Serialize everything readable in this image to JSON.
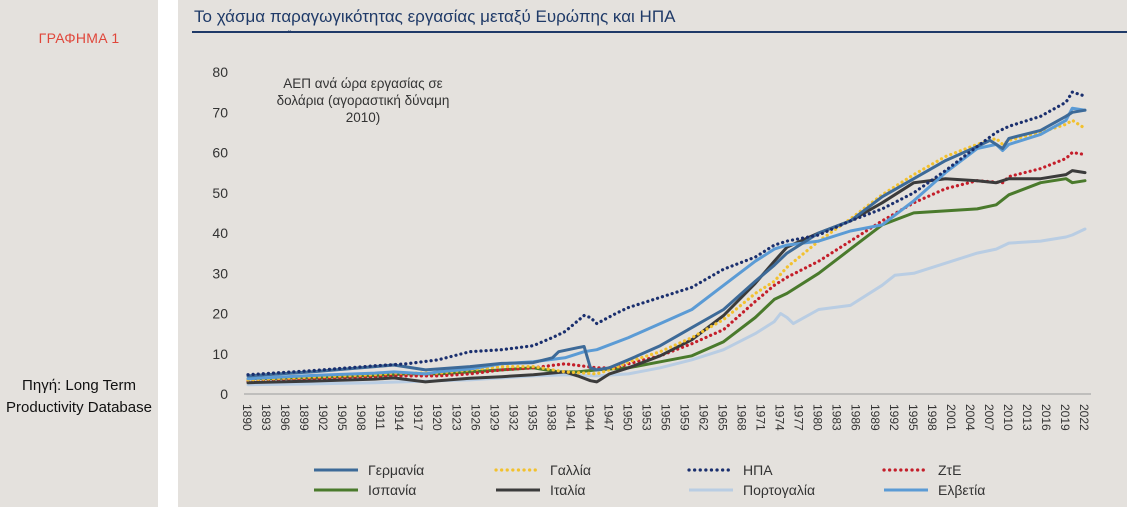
{
  "sidebar": {
    "chart_label": "ΓΡΑΦΗΜΑ 1",
    "source": "Πηγή: Long Term Productivity Database"
  },
  "header": {
    "title": "Το χάσμα παραγωγικότητας εργασίας μεταξύ Ευρώπης και ΗΠΑ"
  },
  "chart_data": {
    "type": "line",
    "title": "Το χάσμα παραγωγικότητας εργασίας μεταξύ Ευρώπης και ΗΠΑ",
    "ylabel_lines": [
      "ΑΕΠ ανά ώρα εργασίας σε",
      "δολάρια (αγοραστική δύναμη",
      "2010)"
    ],
    "xlabel": "",
    "ylim": [
      0,
      80
    ],
    "yticks": [
      0,
      10,
      20,
      30,
      40,
      50,
      60,
      70,
      80
    ],
    "xrange": [
      1890,
      2022
    ],
    "xticks": [
      "1890",
      "1893",
      "1896",
      "1899",
      "1902",
      "1905",
      "1908",
      "1911",
      "1914",
      "1917",
      "1920",
      "1923",
      "1926",
      "1929",
      "1932",
      "1935",
      "1938",
      "1941",
      "1944",
      "1947",
      "1950",
      "1953",
      "1956",
      "1959",
      "1962",
      "1965",
      "1968",
      "1971",
      "1974",
      "1977",
      "1980",
      "1983",
      "1986",
      "1989",
      "1992",
      "1995",
      "1998",
      "2001",
      "2004",
      "2007",
      "2010",
      "2013",
      "2016",
      "2019",
      "2022"
    ],
    "grid": false,
    "legend_position": "bottom",
    "series": [
      {
        "name": "Γερμανία",
        "color": "#3d6a98",
        "style": "solid",
        "points": [
          [
            1890,
            4.5
          ],
          [
            1900,
            5.5
          ],
          [
            1910,
            6.8
          ],
          [
            1913,
            7.2
          ],
          [
            1918,
            6.0
          ],
          [
            1925,
            6.8
          ],
          [
            1930,
            7.6
          ],
          [
            1935,
            7.8
          ],
          [
            1938,
            9.0
          ],
          [
            1939,
            10.5
          ],
          [
            1942,
            11.5
          ],
          [
            1943,
            11.8
          ],
          [
            1944,
            6.5
          ],
          [
            1945,
            6.0
          ],
          [
            1947,
            6.5
          ],
          [
            1950,
            8.5
          ],
          [
            1955,
            12.0
          ],
          [
            1960,
            16.5
          ],
          [
            1965,
            21.0
          ],
          [
            1970,
            28.0
          ],
          [
            1973,
            32.0
          ],
          [
            1975,
            35.0
          ],
          [
            1980,
            40.0
          ],
          [
            1985,
            43.0
          ],
          [
            1990,
            49.0
          ],
          [
            1995,
            53.5
          ],
          [
            2000,
            58.0
          ],
          [
            2005,
            61.5
          ],
          [
            2007,
            63.0
          ],
          [
            2009,
            61.0
          ],
          [
            2010,
            63.5
          ],
          [
            2015,
            65.5
          ],
          [
            2019,
            69.0
          ],
          [
            2020,
            70.0
          ],
          [
            2022,
            70.5
          ]
        ]
      },
      {
        "name": "Γαλλία",
        "color": "#f2c12e",
        "style": "dotted",
        "points": [
          [
            1890,
            3.5
          ],
          [
            1900,
            4.2
          ],
          [
            1910,
            4.8
          ],
          [
            1913,
            5.2
          ],
          [
            1920,
            5.2
          ],
          [
            1925,
            6.0
          ],
          [
            1930,
            6.8
          ],
          [
            1935,
            6.8
          ],
          [
            1940,
            5.5
          ],
          [
            1945,
            5.0
          ],
          [
            1948,
            6.5
          ],
          [
            1950,
            8.0
          ],
          [
            1955,
            10.5
          ],
          [
            1960,
            14.0
          ],
          [
            1965,
            18.5
          ],
          [
            1970,
            25.0
          ],
          [
            1973,
            28.0
          ],
          [
            1975,
            31.5
          ],
          [
            1980,
            38.0
          ],
          [
            1985,
            43.5
          ],
          [
            1990,
            49.5
          ],
          [
            1995,
            54.5
          ],
          [
            2000,
            59.0
          ],
          [
            2005,
            62.0
          ],
          [
            2008,
            63.5
          ],
          [
            2009,
            62.0
          ],
          [
            2010,
            63.0
          ],
          [
            2015,
            65.0
          ],
          [
            2019,
            67.0
          ],
          [
            2020,
            68.0
          ],
          [
            2022,
            66.0
          ]
        ]
      },
      {
        "name": "ΗΠΑ",
        "color": "#1a2f6e",
        "style": "dotted",
        "points": [
          [
            1890,
            4.8
          ],
          [
            1900,
            5.8
          ],
          [
            1910,
            7.0
          ],
          [
            1915,
            7.5
          ],
          [
            1920,
            8.5
          ],
          [
            1925,
            10.5
          ],
          [
            1930,
            11.0
          ],
          [
            1935,
            12.0
          ],
          [
            1938,
            14.0
          ],
          [
            1940,
            15.5
          ],
          [
            1943,
            19.5
          ],
          [
            1944,
            19.0
          ],
          [
            1945,
            17.5
          ],
          [
            1948,
            20.0
          ],
          [
            1950,
            21.5
          ],
          [
            1955,
            24.0
          ],
          [
            1960,
            26.5
          ],
          [
            1965,
            31.0
          ],
          [
            1970,
            34.0
          ],
          [
            1973,
            37.0
          ],
          [
            1975,
            38.0
          ],
          [
            1980,
            39.5
          ],
          [
            1985,
            43.0
          ],
          [
            1990,
            46.0
          ],
          [
            1995,
            50.0
          ],
          [
            2000,
            55.5
          ],
          [
            2005,
            61.5
          ],
          [
            2008,
            65.0
          ],
          [
            2010,
            66.5
          ],
          [
            2015,
            69.0
          ],
          [
            2019,
            72.5
          ],
          [
            2020,
            75.0
          ],
          [
            2022,
            74.0
          ]
        ]
      },
      {
        "name": "ΖτΕ",
        "color": "#c41e2a",
        "style": "dotted",
        "points": [
          [
            1890,
            3.2
          ],
          [
            1900,
            3.8
          ],
          [
            1910,
            4.2
          ],
          [
            1913,
            4.5
          ],
          [
            1920,
            4.5
          ],
          [
            1925,
            5.0
          ],
          [
            1930,
            6.0
          ],
          [
            1935,
            6.5
          ],
          [
            1940,
            7.5
          ],
          [
            1945,
            6.5
          ],
          [
            1948,
            6.5
          ],
          [
            1950,
            7.5
          ],
          [
            1955,
            9.5
          ],
          [
            1960,
            12.5
          ],
          [
            1965,
            16.0
          ],
          [
            1970,
            23.0
          ],
          [
            1973,
            27.0
          ],
          [
            1975,
            29.0
          ],
          [
            1980,
            33.0
          ],
          [
            1985,
            38.0
          ],
          [
            1990,
            43.0
          ],
          [
            1995,
            47.5
          ],
          [
            2000,
            51.0
          ],
          [
            2005,
            53.0
          ],
          [
            2009,
            52.5
          ],
          [
            2010,
            54.0
          ],
          [
            2015,
            56.0
          ],
          [
            2019,
            58.5
          ],
          [
            2020,
            60.0
          ],
          [
            2022,
            59.5
          ]
        ]
      },
      {
        "name": "Ισπανία",
        "color": "#4a7a2c",
        "style": "solid",
        "points": [
          [
            1890,
            3.8
          ],
          [
            1900,
            4.0
          ],
          [
            1910,
            4.6
          ],
          [
            1915,
            5.0
          ],
          [
            1920,
            5.0
          ],
          [
            1925,
            5.5
          ],
          [
            1930,
            6.0
          ],
          [
            1935,
            6.5
          ],
          [
            1937,
            6.0
          ],
          [
            1939,
            5.5
          ],
          [
            1942,
            5.5
          ],
          [
            1945,
            6.0
          ],
          [
            1950,
            6.5
          ],
          [
            1955,
            8.0
          ],
          [
            1960,
            9.5
          ],
          [
            1965,
            13.0
          ],
          [
            1970,
            19.0
          ],
          [
            1973,
            23.5
          ],
          [
            1975,
            25.0
          ],
          [
            1980,
            30.0
          ],
          [
            1985,
            36.0
          ],
          [
            1990,
            42.0
          ],
          [
            1995,
            45.0
          ],
          [
            2000,
            45.5
          ],
          [
            2005,
            46.0
          ],
          [
            2008,
            47.0
          ],
          [
            2010,
            49.5
          ],
          [
            2015,
            52.5
          ],
          [
            2019,
            53.5
          ],
          [
            2020,
            52.5
          ],
          [
            2022,
            53.0
          ]
        ]
      },
      {
        "name": "Ιταλία",
        "color": "#3b3b3b",
        "style": "solid",
        "points": [
          [
            1890,
            2.8
          ],
          [
            1900,
            3.2
          ],
          [
            1910,
            3.7
          ],
          [
            1913,
            4.0
          ],
          [
            1918,
            3.0
          ],
          [
            1920,
            3.3
          ],
          [
            1925,
            3.9
          ],
          [
            1930,
            4.3
          ],
          [
            1935,
            4.8
          ],
          [
            1940,
            5.5
          ],
          [
            1942,
            4.5
          ],
          [
            1944,
            3.3
          ],
          [
            1945,
            3.0
          ],
          [
            1947,
            5.0
          ],
          [
            1950,
            6.5
          ],
          [
            1955,
            9.5
          ],
          [
            1960,
            13.5
          ],
          [
            1965,
            19.5
          ],
          [
            1970,
            27.5
          ],
          [
            1973,
            33.0
          ],
          [
            1975,
            36.5
          ],
          [
            1980,
            40.0
          ],
          [
            1985,
            43.0
          ],
          [
            1990,
            47.5
          ],
          [
            1995,
            52.5
          ],
          [
            2000,
            53.5
          ],
          [
            2005,
            53.0
          ],
          [
            2008,
            52.5
          ],
          [
            2010,
            53.5
          ],
          [
            2015,
            53.5
          ],
          [
            2019,
            54.5
          ],
          [
            2020,
            55.5
          ],
          [
            2022,
            55.0
          ]
        ]
      },
      {
        "name": "Πορτογαλία",
        "color": "#b9cde3",
        "style": "solid",
        "points": [
          [
            1890,
            2.3
          ],
          [
            1900,
            2.5
          ],
          [
            1910,
            2.8
          ],
          [
            1920,
            3.3
          ],
          [
            1925,
            3.5
          ],
          [
            1930,
            4.0
          ],
          [
            1935,
            4.5
          ],
          [
            1940,
            4.8
          ],
          [
            1945,
            4.5
          ],
          [
            1950,
            5.0
          ],
          [
            1955,
            6.5
          ],
          [
            1960,
            8.5
          ],
          [
            1965,
            11.0
          ],
          [
            1970,
            15.0
          ],
          [
            1973,
            18.0
          ],
          [
            1974,
            20.0
          ],
          [
            1975,
            19.0
          ],
          [
            1976,
            17.5
          ],
          [
            1980,
            21.0
          ],
          [
            1985,
            22.0
          ],
          [
            1990,
            27.0
          ],
          [
            1992,
            29.5
          ],
          [
            1995,
            30.0
          ],
          [
            2000,
            32.5
          ],
          [
            2005,
            35.0
          ],
          [
            2008,
            36.0
          ],
          [
            2010,
            37.5
          ],
          [
            2015,
            38.0
          ],
          [
            2019,
            39.0
          ],
          [
            2020,
            39.5
          ],
          [
            2022,
            41.0
          ]
        ]
      },
      {
        "name": "Ελβετία",
        "color": "#5b9bd5",
        "style": "solid",
        "points": [
          [
            1890,
            3.8
          ],
          [
            1900,
            4.6
          ],
          [
            1910,
            5.2
          ],
          [
            1913,
            5.5
          ],
          [
            1918,
            5.0
          ],
          [
            1920,
            5.5
          ],
          [
            1925,
            6.2
          ],
          [
            1930,
            7.5
          ],
          [
            1935,
            8.0
          ],
          [
            1940,
            9.0
          ],
          [
            1943,
            10.5
          ],
          [
            1945,
            11.0
          ],
          [
            1950,
            14.0
          ],
          [
            1955,
            17.5
          ],
          [
            1960,
            21.0
          ],
          [
            1965,
            27.0
          ],
          [
            1970,
            33.0
          ],
          [
            1973,
            36.0
          ],
          [
            1975,
            37.0
          ],
          [
            1980,
            38.0
          ],
          [
            1985,
            40.5
          ],
          [
            1990,
            42.0
          ],
          [
            1995,
            48.0
          ],
          [
            2000,
            55.0
          ],
          [
            2005,
            61.0
          ],
          [
            2008,
            62.0
          ],
          [
            2009,
            60.5
          ],
          [
            2010,
            62.0
          ],
          [
            2015,
            64.5
          ],
          [
            2019,
            68.0
          ],
          [
            2020,
            71.0
          ],
          [
            2022,
            70.5
          ]
        ]
      }
    ]
  }
}
